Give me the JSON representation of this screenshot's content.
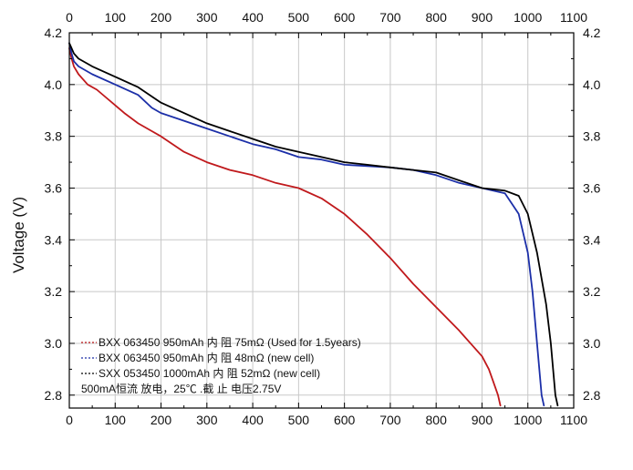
{
  "chart_data": {
    "type": "line",
    "title": "",
    "xlabel": "",
    "ylabel": "Voltage (V)",
    "xlim": [
      0,
      1100
    ],
    "ylim": [
      2.75,
      4.2
    ],
    "x_ticks": [
      "0",
      "100",
      "200",
      "300",
      "400",
      "500",
      "600",
      "700",
      "800",
      "900",
      "1000",
      "1100"
    ],
    "x_tick_values": [
      0,
      100,
      200,
      300,
      400,
      500,
      600,
      700,
      800,
      900,
      1000,
      1100
    ],
    "y_ticks": [
      "2.8",
      "3.0",
      "3.2",
      "3.4",
      "3.6",
      "3.8",
      "4.0",
      "4.2"
    ],
    "y_tick_values": [
      2.8,
      3.0,
      3.2,
      3.4,
      3.6,
      3.8,
      4.0,
      4.2
    ],
    "grid": true,
    "legend_position": "bottom-left",
    "series": [
      {
        "name": "BXX 063450 950mAh 内 阻 75mΩ (Used for 1.5years)",
        "color": "#c0191c",
        "x": [
          0,
          5,
          10,
          20,
          40,
          60,
          80,
          100,
          120,
          150,
          180,
          200,
          250,
          300,
          350,
          400,
          450,
          500,
          550,
          600,
          650,
          700,
          750,
          800,
          850,
          880,
          900,
          915,
          925,
          935,
          940
        ],
        "y": [
          4.14,
          4.1,
          4.07,
          4.04,
          4.0,
          3.98,
          3.95,
          3.92,
          3.89,
          3.85,
          3.82,
          3.8,
          3.74,
          3.7,
          3.67,
          3.65,
          3.62,
          3.6,
          3.56,
          3.5,
          3.42,
          3.33,
          3.23,
          3.14,
          3.05,
          2.99,
          2.95,
          2.9,
          2.85,
          2.8,
          2.76
        ]
      },
      {
        "name": "BXX 063450 950mAh 内 阻 48mΩ (new cell)",
        "color": "#1c2fa8",
        "x": [
          0,
          5,
          10,
          20,
          50,
          100,
          150,
          180,
          200,
          250,
          300,
          350,
          400,
          450,
          500,
          550,
          600,
          650,
          700,
          750,
          800,
          850,
          900,
          950,
          980,
          1000,
          1010,
          1020,
          1025,
          1030,
          1035
        ],
        "y": [
          4.16,
          4.12,
          4.09,
          4.07,
          4.04,
          4.0,
          3.96,
          3.91,
          3.89,
          3.86,
          3.83,
          3.8,
          3.77,
          3.75,
          3.72,
          3.71,
          3.69,
          3.685,
          3.68,
          3.67,
          3.65,
          3.62,
          3.6,
          3.58,
          3.5,
          3.35,
          3.2,
          3.0,
          2.9,
          2.8,
          2.76
        ]
      },
      {
        "name": "SXX 053450 1000mAh 内 阻 52mΩ (new cell)",
        "color": "#000000",
        "x": [
          0,
          5,
          10,
          20,
          50,
          100,
          150,
          200,
          250,
          300,
          350,
          400,
          450,
          500,
          550,
          600,
          650,
          700,
          750,
          800,
          850,
          900,
          950,
          980,
          1000,
          1020,
          1040,
          1050,
          1055,
          1060,
          1065
        ],
        "y": [
          4.16,
          4.14,
          4.12,
          4.1,
          4.07,
          4.03,
          3.99,
          3.93,
          3.89,
          3.85,
          3.82,
          3.79,
          3.76,
          3.74,
          3.72,
          3.7,
          3.69,
          3.68,
          3.67,
          3.66,
          3.63,
          3.6,
          3.59,
          3.57,
          3.5,
          3.35,
          3.15,
          3.0,
          2.9,
          2.8,
          2.76
        ]
      }
    ],
    "legend": {
      "entries": [
        "BXX 063450 950mAh  内  阻 75mΩ (Used for 1.5years)",
        "BXX 063450 950mAh  内  阻 48mΩ (new cell)",
        "SXX 053450 1000mAh  内  阻 52mΩ  (new cell)"
      ],
      "note": "500mA恒流 放电，25℃ .截  止 电压2.75V"
    }
  }
}
